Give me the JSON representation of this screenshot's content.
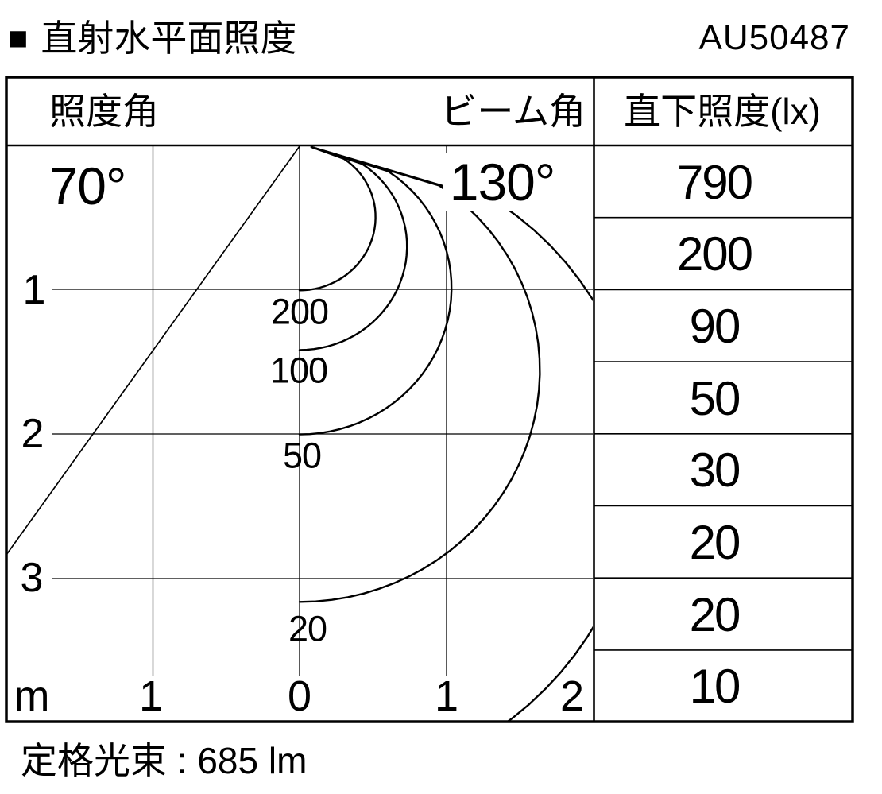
{
  "header": {
    "marker": "■",
    "title": "直射水平面照度",
    "product_code": "AU50487"
  },
  "table": {
    "col_left_header": "照度角",
    "col_mid_header": "ビーム角",
    "col_right_header": "直下照度(lx)",
    "values": [
      "790",
      "200",
      "90",
      "50",
      "30",
      "20",
      "20",
      "10"
    ]
  },
  "chart": {
    "illuminance_angle_label": "70°",
    "beam_angle_label": "130°",
    "y_tick_labels": [
      "1",
      "2",
      "3"
    ],
    "x_tick_labels": [
      "m",
      "1",
      "0",
      "1",
      "2"
    ],
    "curve_labels": [
      "200",
      "100",
      "50",
      "20"
    ],
    "isolux_levels_lx": [
      200,
      100,
      50,
      20,
      10
    ]
  },
  "footer": {
    "rated_flux": "定格光束 : 685 lm"
  },
  "chart_data": {
    "type": "line",
    "subtype": "isolux-cone-diagram",
    "title": "直射水平面照度",
    "product": "AU50487",
    "illuminance_angle_deg": 70,
    "beam_angle_deg": 130,
    "x_axis": {
      "unit": "m",
      "tick_labels": [
        "m",
        "1",
        "0",
        "1",
        "2"
      ],
      "meters_per_gridline": 1
    },
    "y_axis": {
      "unit": "m",
      "tick_labels": [
        "1",
        "2",
        "3"
      ],
      "range_m": [
        0,
        4
      ]
    },
    "isolux_curves_lx": [
      200,
      100,
      50,
      20,
      10
    ],
    "labeled_isolux_curves_lx": [
      200,
      100,
      50,
      20
    ],
    "direct_illuminance_column": {
      "header": "直下照度(lx)",
      "values_lx": [
        790,
        200,
        90,
        50,
        30,
        20,
        20,
        10
      ]
    },
    "rated_luminous_flux": "685 lm"
  }
}
